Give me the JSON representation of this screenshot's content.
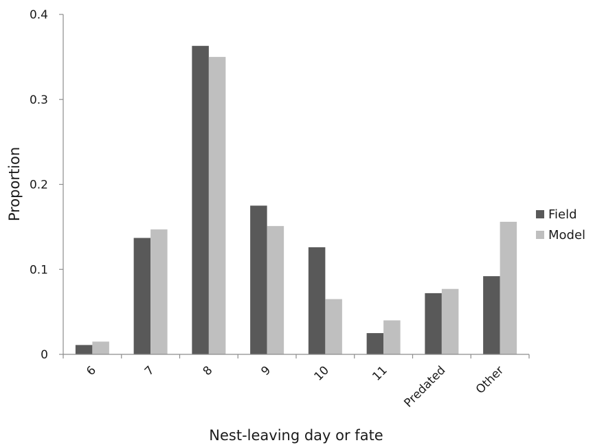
{
  "chart_data": {
    "type": "bar",
    "xlabel": "Nest-leaving day or fate",
    "ylabel": "Proportion",
    "ylim": [
      0,
      0.4
    ],
    "yticks": [
      "0",
      "0.1",
      "0.2",
      "0.3",
      "0.4"
    ],
    "categories": [
      "6",
      "7",
      "8",
      "9",
      "10",
      "11",
      "Predated",
      "Other"
    ],
    "series": [
      {
        "name": "Field",
        "color": "#595959",
        "values": [
          0.011,
          0.137,
          0.363,
          0.175,
          0.126,
          0.025,
          0.072,
          0.092
        ]
      },
      {
        "name": "Model",
        "color": "#bfbfbf",
        "values": [
          0.015,
          0.147,
          0.35,
          0.151,
          0.065,
          0.04,
          0.077,
          0.156
        ]
      }
    ],
    "grid": false,
    "legend": "right"
  }
}
